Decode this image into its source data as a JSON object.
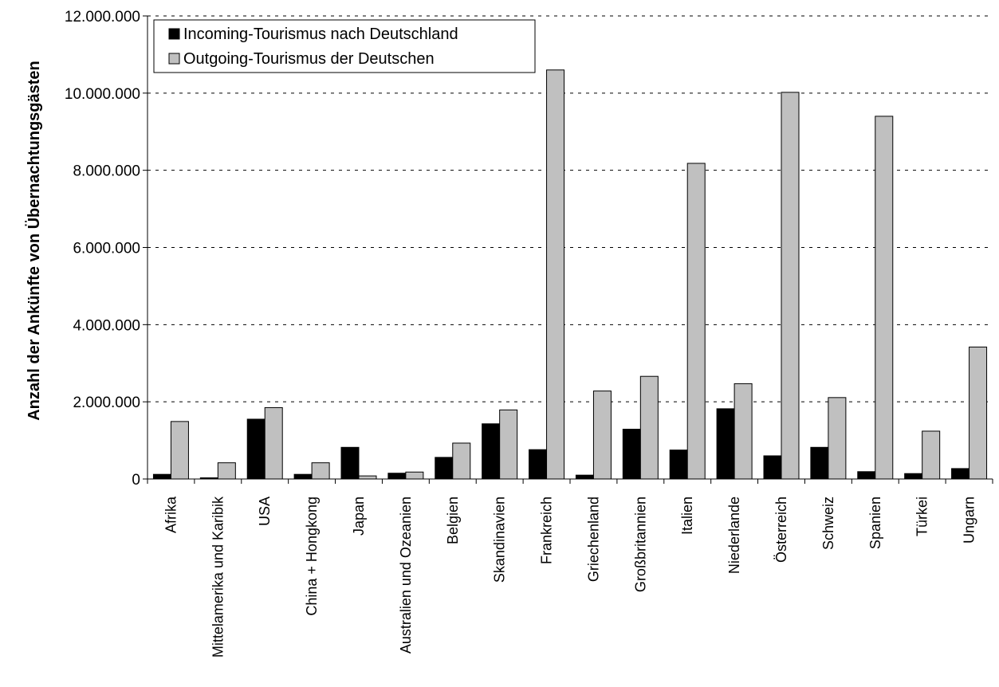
{
  "chart_data": {
    "type": "bar",
    "ylabel": "Anzahl der Ankünfte von Übernachtungsgästen",
    "xlabel": "",
    "ylim": [
      0,
      12000000
    ],
    "y_tick_values": [
      0,
      2000000,
      4000000,
      6000000,
      8000000,
      10000000,
      12000000
    ],
    "y_tick_labels": [
      "0",
      "2.000.000",
      "4.000.000",
      "6.000.000",
      "8.000.000",
      "10.000.000",
      "12.000.000"
    ],
    "grid": "horizontal dashed",
    "legend_position": "top-left",
    "categories": [
      "Afrika",
      "Mittelamerika und Karibik",
      "USA",
      "China + Hongkong",
      "Japan",
      "Australien und Ozeanien",
      "Belgien",
      "Skandinavien",
      "Frankreich",
      "Griechenland",
      "Großbritannien",
      "Italien",
      "Niederlande",
      "Österreich",
      "Schweiz",
      "Spanien",
      "Türkei",
      "Ungarn"
    ],
    "series": [
      {
        "name": "Incoming-Tourismus nach Deutschland",
        "color": "#000000",
        "values": [
          120000,
          30000,
          1550000,
          120000,
          820000,
          150000,
          560000,
          1430000,
          760000,
          100000,
          1290000,
          750000,
          1820000,
          600000,
          820000,
          190000,
          140000,
          270000
        ]
      },
      {
        "name": "Outgoing-Tourismus der Deutschen",
        "color": "#c0c0c0",
        "values": [
          1490000,
          420000,
          1850000,
          420000,
          80000,
          180000,
          930000,
          1790000,
          10600000,
          2280000,
          2660000,
          8180000,
          2470000,
          10020000,
          2110000,
          9400000,
          1240000,
          3420000
        ]
      }
    ]
  }
}
